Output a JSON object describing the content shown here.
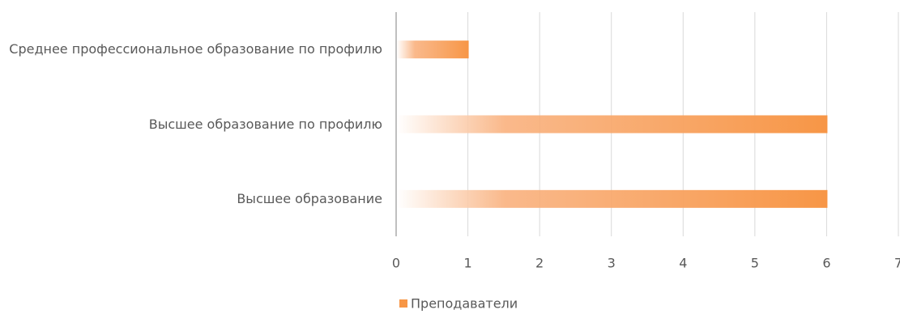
{
  "chart_data": {
    "type": "bar",
    "orientation": "horizontal",
    "categories": [
      "Среднее профессиональное образование по профилю",
      "Высшее образование по профилю",
      "Высшее образование"
    ],
    "series": [
      {
        "name": "Преподаватели",
        "color": "#f79646",
        "values": [
          1,
          6,
          6
        ]
      }
    ],
    "xlim": [
      0,
      7
    ],
    "xticks": [
      0,
      1,
      2,
      3,
      4,
      5,
      6,
      7
    ],
    "grid": true,
    "legend": "bottom"
  }
}
